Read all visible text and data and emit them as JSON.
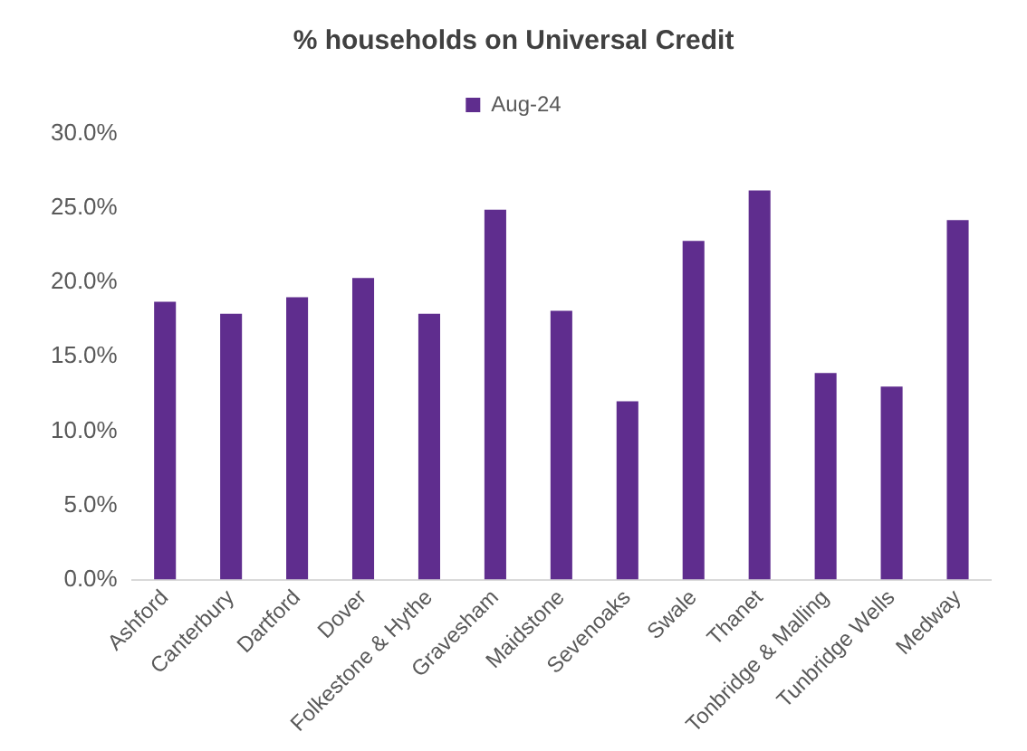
{
  "chart_data": {
    "type": "bar",
    "title": "% households on Universal Credit",
    "categories": [
      "Ashford",
      "Canterbury",
      "Dartford",
      "Dover",
      "Folkestone & Hythe",
      "Gravesham",
      "Maidstone",
      "Sevenoaks",
      "Swale",
      "Thanet",
      "Tonbridge & Malling",
      "Tunbridge Wells",
      "Medway"
    ],
    "series": [
      {
        "name": "Aug-24",
        "color": "#5f2d8e",
        "values": [
          18.7,
          17.9,
          19.0,
          20.3,
          17.9,
          24.9,
          18.1,
          12.0,
          22.8,
          26.2,
          13.9,
          13.0,
          24.2
        ]
      }
    ],
    "ylim": [
      0,
      30
    ],
    "yticks": [
      {
        "value": 0,
        "label": "0.0%"
      },
      {
        "value": 5,
        "label": "5.0%"
      },
      {
        "value": 10,
        "label": "10.0%"
      },
      {
        "value": 15,
        "label": "15.0%"
      },
      {
        "value": 20,
        "label": "20.0%"
      },
      {
        "value": 25,
        "label": "25.0%"
      },
      {
        "value": 30,
        "label": "30.0%"
      }
    ],
    "grid": false,
    "legend": "top"
  }
}
